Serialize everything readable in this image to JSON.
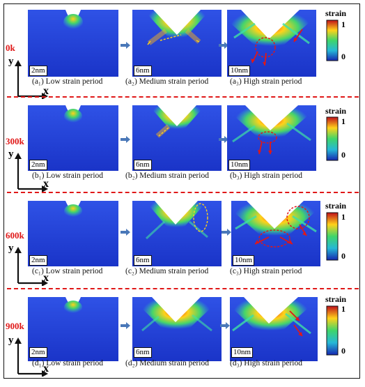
{
  "figure": {
    "colorbar": {
      "title": "strain",
      "max_label": "1",
      "min_label": "0"
    },
    "axis_labels": {
      "y": "y",
      "x": "x"
    },
    "rows": [
      {
        "temperature": "0k",
        "panels": [
          {
            "scale": "2nm",
            "caption": "(a₁) Low strain period"
          },
          {
            "scale": "6nm",
            "caption": "(a₂) Medium strain period"
          },
          {
            "scale": "10nm",
            "caption": "(a₃) High strain period"
          }
        ]
      },
      {
        "temperature": "300k",
        "panels": [
          {
            "scale": "2nm",
            "caption": "(b₁) Low strain period"
          },
          {
            "scale": "6nm",
            "caption": "(b₂) Medium strain period"
          },
          {
            "scale": "10nm",
            "caption": "(b₃) High strain period"
          }
        ]
      },
      {
        "temperature": "600k",
        "panels": [
          {
            "scale": "2nm",
            "caption": "(c₁) Low strain period"
          },
          {
            "scale": "6nm",
            "caption": "(c₂) Medium strain period"
          },
          {
            "scale": "10nm",
            "caption": "(c₃) High strain period"
          }
        ]
      },
      {
        "temperature": "900k",
        "panels": [
          {
            "scale": "2nm",
            "caption": "(d₁) Low strain period"
          },
          {
            "scale": "6nm",
            "caption": "(d₂) Medium strain period"
          },
          {
            "scale": "10nm",
            "caption": "(d₃) High strain period"
          }
        ]
      }
    ]
  },
  "colors": {
    "temperature_label": "#e01818",
    "background_blue": "#1e3fd8",
    "separator": "#e01818"
  }
}
